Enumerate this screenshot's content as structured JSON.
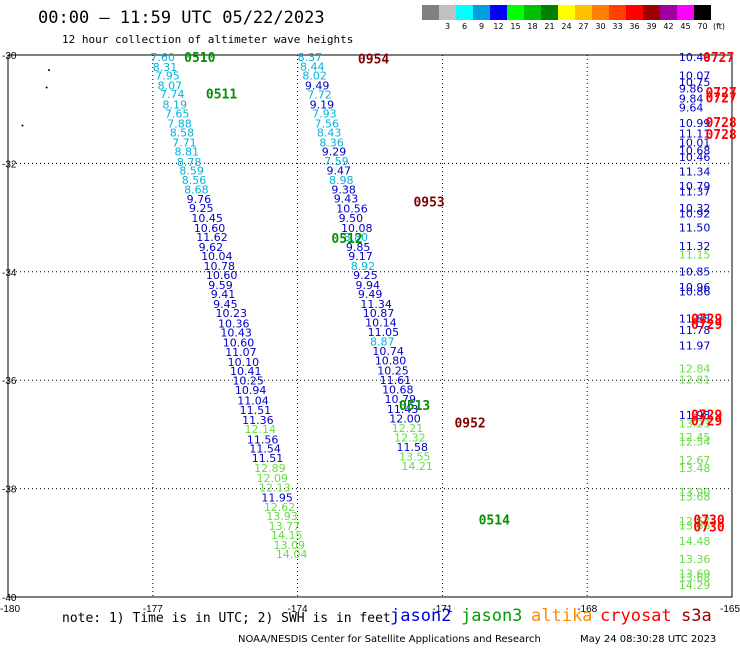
{
  "header": {
    "title": "00:00 – 11:59 UTC 05/22/2023",
    "subtitle": "12 hour collection of altimeter wave heights"
  },
  "legend": {
    "unit": "(ft)",
    "bins": [
      {
        "label": "",
        "color": "#808080"
      },
      {
        "label": "3",
        "color": "#c0c0c0"
      },
      {
        "label": "6",
        "color": "#00ffff"
      },
      {
        "label": "9",
        "color": "#00a0e0"
      },
      {
        "label": "12",
        "color": "#0000ff"
      },
      {
        "label": "15",
        "color": "#00ff00"
      },
      {
        "label": "18",
        "color": "#00c000"
      },
      {
        "label": "21",
        "color": "#008000"
      },
      {
        "label": "24",
        "color": "#ffff00"
      },
      {
        "label": "27",
        "color": "#ffc000"
      },
      {
        "label": "30",
        "color": "#ff8000"
      },
      {
        "label": "33",
        "color": "#ff4000"
      },
      {
        "label": "36",
        "color": "#ff0000"
      },
      {
        "label": "39",
        "color": "#a00000"
      },
      {
        "label": "42",
        "color": "#a000a0"
      },
      {
        "label": "45",
        "color": "#ff00ff"
      },
      {
        "label": "70",
        "color": "#000000"
      }
    ]
  },
  "footer": {
    "note": "note: 1) Time is in UTC; 2) SWH is in feet",
    "satellites": [
      {
        "name": "jason2",
        "color": "#0000e0"
      },
      {
        "name": "jason3",
        "color": "#00a000"
      },
      {
        "name": "altika",
        "color": "#ff8c00"
      },
      {
        "name": "cryosat",
        "color": "#ff0000"
      },
      {
        "name": "s3a",
        "color": "#a00000"
      }
    ],
    "credit": "NOAA/NESDIS Center for Satellite Applications and Research",
    "timestamp": "May 24 08:30:28 UTC 2023"
  },
  "chart_data": {
    "type": "scatter",
    "title": "00:00 – 11:59 UTC 05/22/2023",
    "subtitle": "12 hour collection of altimeter wave heights",
    "xlabel": "",
    "ylabel": "",
    "xlim": [
      -180,
      -165
    ],
    "ylim": [
      -40,
      -30
    ],
    "x_ticks": [
      "-180",
      "-177",
      "-174",
      "-171",
      "-168",
      "-165"
    ],
    "y_ticks": [
      "-30",
      "-32",
      "-34",
      "-36",
      "-38",
      "-40"
    ],
    "grid": true,
    "colors": {
      "cyan": "#00b4dc",
      "blue": "#0000c8",
      "lgreen": "#66dd44",
      "dgreen": "#009000",
      "maroon": "#800000",
      "red": "#ff0000"
    },
    "tracks": [
      {
        "name": "track-a",
        "values": [
          [
            -177.05,
            -30.04,
            "7.60",
            "cyan"
          ],
          [
            -177.0,
            -30.22,
            "8.31",
            "cyan"
          ],
          [
            -176.95,
            -30.38,
            "7.95",
            "cyan"
          ],
          [
            -176.9,
            -30.56,
            "8.07",
            "cyan"
          ],
          [
            -176.85,
            -30.72,
            "7.74",
            "cyan"
          ],
          [
            -176.8,
            -30.91,
            "8.19",
            "cyan"
          ],
          [
            -176.75,
            -31.08,
            "7.65",
            "cyan"
          ],
          [
            -176.7,
            -31.26,
            "7.88",
            "cyan"
          ],
          [
            -176.65,
            -31.43,
            "8.58",
            "cyan"
          ],
          [
            -176.6,
            -31.61,
            "7.71",
            "cyan"
          ],
          [
            -176.55,
            -31.78,
            "8.81",
            "cyan"
          ],
          [
            -176.5,
            -31.97,
            "8.78",
            "cyan"
          ],
          [
            -176.45,
            -32.13,
            "8.59",
            "cyan"
          ],
          [
            -176.4,
            -32.31,
            "8.56",
            "cyan"
          ],
          [
            -176.35,
            -32.48,
            "8.68",
            "cyan"
          ],
          [
            -176.3,
            -32.66,
            "9.76",
            "blue"
          ],
          [
            -176.25,
            -32.82,
            "9.25",
            "blue"
          ],
          [
            -176.2,
            -33.01,
            "10.45",
            "blue"
          ],
          [
            -176.15,
            -33.19,
            "10.60",
            "blue"
          ],
          [
            -176.1,
            -33.36,
            "11.62",
            "blue"
          ],
          [
            -176.05,
            -33.54,
            "9.62",
            "blue"
          ],
          [
            -176.0,
            -33.71,
            "10.04",
            "blue"
          ],
          [
            -175.95,
            -33.89,
            "10.78",
            "blue"
          ],
          [
            -175.9,
            -34.06,
            "10.60",
            "blue"
          ],
          [
            -175.85,
            -34.24,
            "9.59",
            "blue"
          ],
          [
            -175.8,
            -34.41,
            "9.41",
            "blue"
          ],
          [
            -175.75,
            -34.59,
            "9.45",
            "blue"
          ],
          [
            -175.7,
            -34.76,
            "10.23",
            "blue"
          ],
          [
            -175.65,
            -34.95,
            "10.36",
            "blue"
          ],
          [
            -175.6,
            -35.12,
            "10.43",
            "blue"
          ],
          [
            -175.55,
            -35.3,
            "10.60",
            "blue"
          ],
          [
            -175.5,
            -35.48,
            "11.07",
            "blue"
          ],
          [
            -175.45,
            -35.66,
            "10.10",
            "blue"
          ],
          [
            -175.4,
            -35.83,
            "10.41",
            "blue"
          ],
          [
            -175.35,
            -36.01,
            "10.25",
            "blue"
          ],
          [
            -175.3,
            -36.18,
            "10.94",
            "blue"
          ],
          [
            -175.25,
            -36.37,
            "11.04",
            "blue"
          ],
          [
            -175.2,
            -36.55,
            "11.51",
            "blue"
          ],
          [
            -175.15,
            -36.73,
            "11.36",
            "blue"
          ],
          [
            -175.1,
            -36.9,
            "12.14",
            "lgreen"
          ],
          [
            -175.05,
            -37.09,
            "11.56",
            "blue"
          ],
          [
            -175.0,
            -37.26,
            "11.54",
            "blue"
          ],
          [
            -174.95,
            -37.44,
            "11.51",
            "blue"
          ],
          [
            -174.9,
            -37.62,
            "12.89",
            "lgreen"
          ],
          [
            -174.85,
            -37.8,
            "12.09",
            "lgreen"
          ],
          [
            -174.8,
            -37.98,
            "12.13",
            "lgreen"
          ],
          [
            -174.75,
            -38.16,
            "11.95",
            "blue"
          ],
          [
            -174.7,
            -38.34,
            "12.62",
            "lgreen"
          ],
          [
            -174.65,
            -38.51,
            "13.93",
            "lgreen"
          ],
          [
            -174.6,
            -38.69,
            "13.77",
            "lgreen"
          ],
          [
            -174.55,
            -38.86,
            "14.15",
            "lgreen"
          ],
          [
            -174.5,
            -39.04,
            "13.09",
            "lgreen"
          ],
          [
            -174.45,
            -39.21,
            "14.04",
            "lgreen"
          ]
        ]
      },
      {
        "name": "track-b",
        "values": [
          [
            -174.0,
            -30.04,
            "8.37",
            "cyan"
          ],
          [
            -173.95,
            -30.21,
            "8.44",
            "cyan"
          ],
          [
            -173.9,
            -30.38,
            "8.02",
            "cyan"
          ],
          [
            -173.85,
            -30.56,
            "9.49",
            "blue"
          ],
          [
            -173.8,
            -30.73,
            "7.72",
            "cyan"
          ],
          [
            -173.75,
            -30.91,
            "9.19",
            "blue"
          ],
          [
            -173.7,
            -31.08,
            "7.93",
            "cyan"
          ],
          [
            -173.65,
            -31.26,
            "7.56",
            "cyan"
          ],
          [
            -173.6,
            -31.43,
            "8.43",
            "cyan"
          ],
          [
            -173.55,
            -31.61,
            "8.36",
            "cyan"
          ],
          [
            -173.5,
            -31.78,
            "9.29",
            "blue"
          ],
          [
            -173.45,
            -31.96,
            "7.59",
            "cyan"
          ],
          [
            -173.4,
            -32.13,
            "9.47",
            "blue"
          ],
          [
            -173.35,
            -32.31,
            "8.98",
            "cyan"
          ],
          [
            -173.3,
            -32.48,
            "9.38",
            "blue"
          ],
          [
            -173.25,
            -32.65,
            "9.43",
            "blue"
          ],
          [
            -173.2,
            -32.83,
            "10.56",
            "blue"
          ],
          [
            -173.15,
            -33.01,
            "9.50",
            "blue"
          ],
          [
            -173.1,
            -33.19,
            "10.08",
            "blue"
          ],
          [
            -173.05,
            -33.36,
            "8.80",
            "cyan"
          ],
          [
            -173.0,
            -33.54,
            "9.85",
            "blue"
          ],
          [
            -172.95,
            -33.71,
            "9.17",
            "blue"
          ],
          [
            -172.9,
            -33.89,
            "8.92",
            "cyan"
          ],
          [
            -172.85,
            -34.06,
            "9.25",
            "blue"
          ],
          [
            -172.8,
            -34.24,
            "9.94",
            "blue"
          ],
          [
            -172.75,
            -34.41,
            "9.49",
            "blue"
          ],
          [
            -172.7,
            -34.59,
            "11.34",
            "blue"
          ],
          [
            -172.65,
            -34.76,
            "10.87",
            "blue"
          ],
          [
            -172.6,
            -34.94,
            "10.14",
            "blue"
          ],
          [
            -172.55,
            -35.11,
            "11.05",
            "blue"
          ],
          [
            -172.5,
            -35.29,
            "8.87",
            "cyan"
          ],
          [
            -172.45,
            -35.46,
            "10.74",
            "blue"
          ],
          [
            -172.4,
            -35.64,
            "10.80",
            "blue"
          ],
          [
            -172.35,
            -35.82,
            "10.25",
            "blue"
          ],
          [
            -172.3,
            -36.0,
            "11.61",
            "blue"
          ],
          [
            -172.25,
            -36.17,
            "10.68",
            "blue"
          ],
          [
            -172.2,
            -36.35,
            "10.79",
            "blue"
          ],
          [
            -172.15,
            -36.53,
            "11.43",
            "blue"
          ],
          [
            -172.1,
            -36.71,
            "12.00",
            "blue"
          ],
          [
            -172.05,
            -36.88,
            "12.21",
            "lgreen"
          ],
          [
            -172.0,
            -37.06,
            "12.32",
            "lgreen"
          ],
          [
            -171.95,
            -37.23,
            "11.58",
            "blue"
          ],
          [
            -171.9,
            -37.41,
            "13.55",
            "lgreen"
          ],
          [
            -171.85,
            -37.58,
            "14.21",
            "lgreen"
          ]
        ]
      },
      {
        "name": "track-c",
        "values": [
          [
            -166.1,
            -30.04,
            "10.49",
            "blue"
          ],
          [
            -166.1,
            -30.38,
            "10.07",
            "blue"
          ],
          [
            -166.1,
            -30.5,
            "10.75",
            "blue"
          ],
          [
            -166.1,
            -30.62,
            "9.86",
            "blue"
          ],
          [
            -166.1,
            -30.8,
            "9.84",
            "blue"
          ],
          [
            -166.1,
            -30.97,
            "9.64",
            "blue"
          ],
          [
            -166.1,
            -31.25,
            "10.99",
            "blue"
          ],
          [
            -166.1,
            -31.45,
            "11.11",
            "blue"
          ],
          [
            -166.1,
            -31.61,
            "10.01",
            "blue"
          ],
          [
            -166.1,
            -31.76,
            "10.68",
            "blue"
          ],
          [
            -166.1,
            -31.88,
            "10.46",
            "blue"
          ],
          [
            -166.1,
            -32.15,
            "11.34",
            "blue"
          ],
          [
            -166.1,
            -32.42,
            "10.79",
            "blue"
          ],
          [
            -166.1,
            -32.52,
            "11.37",
            "blue"
          ],
          [
            -166.1,
            -32.82,
            "10.32",
            "blue"
          ],
          [
            -166.1,
            -32.92,
            "10.92",
            "blue"
          ],
          [
            -166.1,
            -33.18,
            "11.50",
            "blue"
          ],
          [
            -166.1,
            -33.52,
            "11.32",
            "blue"
          ],
          [
            -166.1,
            -33.68,
            "11.15",
            "lgreen"
          ],
          [
            -166.1,
            -33.99,
            "10.85",
            "blue"
          ],
          [
            -166.1,
            -34.28,
            "10.96",
            "blue"
          ],
          [
            -166.1,
            -34.36,
            "10.86",
            "blue"
          ],
          [
            -166.1,
            -34.86,
            "11.88",
            "blue"
          ],
          [
            -166.1,
            -35.07,
            "11.78",
            "blue"
          ],
          [
            -166.1,
            -35.36,
            "11.97",
            "blue"
          ],
          [
            -166.1,
            -35.78,
            "12.84",
            "lgreen"
          ],
          [
            -166.1,
            -35.99,
            "12.81",
            "lgreen"
          ],
          [
            -166.1,
            -36.64,
            "11.98",
            "blue"
          ],
          [
            -166.1,
            -36.8,
            "13.23",
            "lgreen"
          ],
          [
            -166.1,
            -37.05,
            "12.45",
            "lgreen"
          ],
          [
            -166.1,
            -37.13,
            "12.54",
            "lgreen"
          ],
          [
            -166.1,
            -37.47,
            "12.67",
            "lgreen"
          ],
          [
            -166.1,
            -37.62,
            "13.48",
            "lgreen"
          ],
          [
            -166.1,
            -38.06,
            "13.90",
            "lgreen"
          ],
          [
            -166.1,
            -38.15,
            "13.68",
            "lgreen"
          ],
          [
            -166.1,
            -38.6,
            "12.57",
            "lgreen"
          ],
          [
            -166.1,
            -38.68,
            "13.66",
            "lgreen"
          ],
          [
            -166.1,
            -38.97,
            "14.48",
            "lgreen"
          ],
          [
            -166.1,
            -39.3,
            "13.36",
            "lgreen"
          ],
          [
            -166.1,
            -39.57,
            "13.69",
            "lgreen"
          ],
          [
            -166.1,
            -39.64,
            "13.68",
            "lgreen"
          ],
          [
            -166.1,
            -39.78,
            "14.29",
            "lgreen"
          ]
        ]
      }
    ],
    "time_labels": [
      [
        -176.35,
        -30.04,
        "0510",
        "dgreen"
      ],
      [
        -175.9,
        -30.71,
        "0511",
        "dgreen"
      ],
      [
        -173.3,
        -33.38,
        "0512",
        "dgreen"
      ],
      [
        -171.9,
        -36.46,
        "0513",
        "dgreen"
      ],
      [
        -170.25,
        -38.57,
        "0514",
        "dgreen"
      ],
      [
        -172.75,
        -30.06,
        "0954",
        "maroon"
      ],
      [
        -171.6,
        -32.7,
        "0953",
        "maroon"
      ],
      [
        -170.75,
        -36.78,
        "0952",
        "maroon"
      ],
      [
        -165.6,
        -30.04,
        "0727",
        "red"
      ],
      [
        -165.55,
        -30.68,
        "0727",
        "red"
      ],
      [
        -165.55,
        -30.78,
        "0727",
        "red"
      ],
      [
        -165.55,
        -31.24,
        "0728",
        "red"
      ],
      [
        -165.55,
        -31.46,
        "0728",
        "red"
      ],
      [
        -165.85,
        -34.86,
        "0729",
        "red"
      ],
      [
        -165.85,
        -34.96,
        "0729",
        "red"
      ],
      [
        -165.85,
        -36.63,
        "0729",
        "red"
      ],
      [
        -165.85,
        -36.74,
        "0729",
        "red"
      ],
      [
        -165.8,
        -38.57,
        "0730",
        "red"
      ],
      [
        -165.8,
        -38.7,
        "0730",
        "red"
      ]
    ],
    "stray_points": [
      [
        -179.15,
        -30.28
      ],
      [
        -179.2,
        -30.6
      ],
      [
        -179.7,
        -31.3
      ]
    ]
  }
}
